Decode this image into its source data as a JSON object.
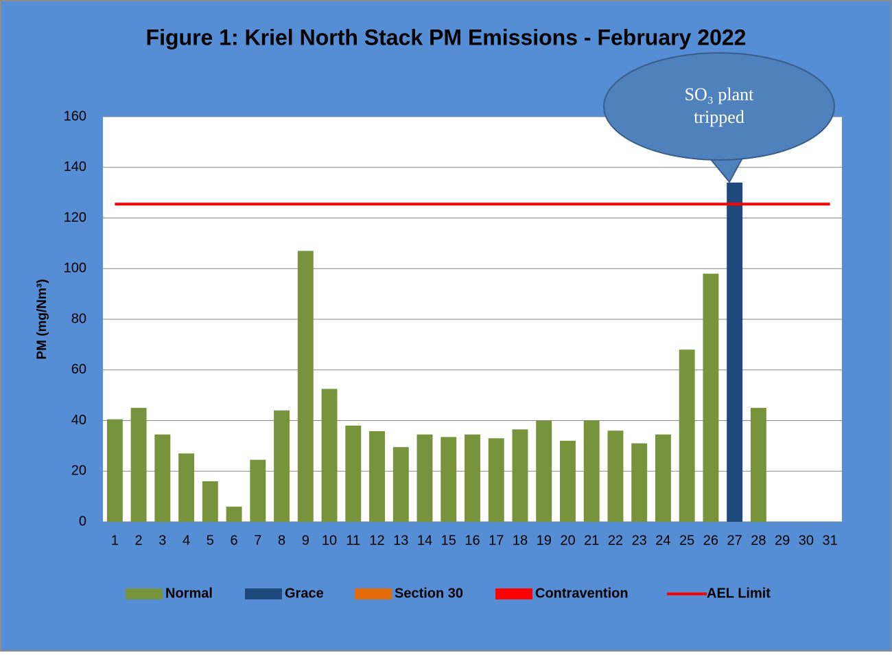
{
  "chart_data": {
    "type": "bar",
    "title": "Figure 1: Kriel North Stack PM Emissions -  February 2022",
    "y_label": "PM (mg/Nm³)",
    "categories": [
      "1",
      "2",
      "3",
      "4",
      "5",
      "6",
      "7",
      "8",
      "9",
      "10",
      "11",
      "12",
      "13",
      "14",
      "15",
      "16",
      "17",
      "18",
      "19",
      "20",
      "21",
      "22",
      "23",
      "24",
      "25",
      "26",
      "27",
      "28",
      "29",
      "30",
      "31"
    ],
    "series": [
      {
        "name": "Normal",
        "color": "#77933C",
        "values": [
          40.5,
          45,
          34.5,
          27,
          16,
          6,
          24.5,
          44,
          107,
          52.5,
          38,
          35.8,
          29.5,
          34.5,
          33.5,
          34.5,
          33,
          36.5,
          40,
          32,
          40,
          36,
          31,
          34.5,
          68,
          98,
          null,
          45,
          null,
          null,
          null
        ]
      },
      {
        "name": "Grace",
        "color": "#1F497D",
        "values": [
          null,
          null,
          null,
          null,
          null,
          null,
          null,
          null,
          null,
          null,
          null,
          null,
          null,
          null,
          null,
          null,
          null,
          null,
          null,
          null,
          null,
          null,
          null,
          null,
          null,
          null,
          134,
          null,
          null,
          null,
          null
        ]
      },
      {
        "name": "Section 30",
        "color": "#E36C09",
        "values": [
          null,
          null,
          null,
          null,
          null,
          null,
          null,
          null,
          null,
          null,
          null,
          null,
          null,
          null,
          null,
          null,
          null,
          null,
          null,
          null,
          null,
          null,
          null,
          null,
          null,
          null,
          null,
          null,
          null,
          null,
          null
        ]
      },
      {
        "name": "Contravention",
        "color": "#FF0000",
        "values": [
          null,
          null,
          null,
          null,
          null,
          null,
          null,
          null,
          null,
          null,
          null,
          null,
          null,
          null,
          null,
          null,
          null,
          null,
          null,
          null,
          null,
          null,
          null,
          null,
          null,
          null,
          null,
          null,
          null,
          null,
          null
        ]
      },
      {
        "name": "AEL Limit",
        "color": "#FF0000",
        "type": "line",
        "values": [
          125.5,
          125.5,
          125.5,
          125.5,
          125.5,
          125.5,
          125.5,
          125.5,
          125.5,
          125.5,
          125.5,
          125.5,
          125.5,
          125.5,
          125.5,
          125.5,
          125.5,
          125.5,
          125.5,
          125.5,
          125.5,
          125.5,
          125.5,
          125.5,
          125.5,
          125.5,
          125.5,
          125.5,
          125.5,
          125.5,
          125.5
        ]
      }
    ],
    "ylim": [
      0,
      160
    ],
    "yticks": [
      0,
      20,
      40,
      60,
      80,
      100,
      120,
      140,
      160
    ],
    "grid": true,
    "legend": "bottom",
    "annotation": [
      "SO₃ plant",
      "tripped"
    ]
  }
}
